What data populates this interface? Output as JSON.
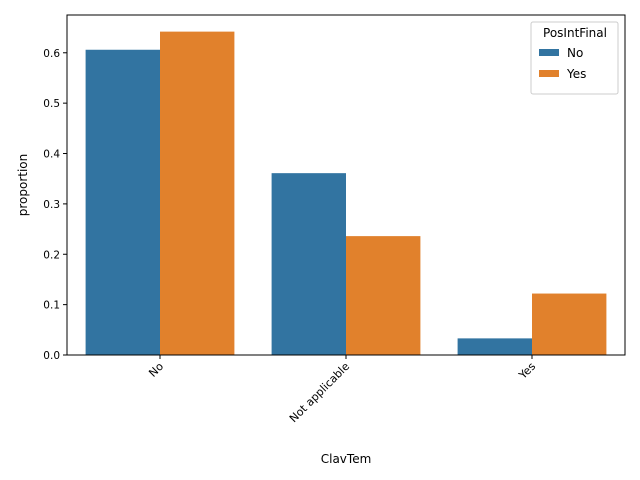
{
  "chart_data": {
    "type": "bar",
    "title": "",
    "xlabel": "ClavTem",
    "ylabel": "proportion",
    "categories": [
      "No",
      "Not applicable",
      "Yes"
    ],
    "series": [
      {
        "name": "No",
        "values": [
          0.606,
          0.361,
          0.033
        ],
        "color": "#3274a1"
      },
      {
        "name": "Yes",
        "values": [
          0.642,
          0.236,
          0.122
        ],
        "color": "#e1812c"
      }
    ],
    "ylim": [
      0,
      0.675
    ],
    "yticks": [
      0.0,
      0.1,
      0.2,
      0.3,
      0.4,
      0.5,
      0.6
    ],
    "ytick_labels": [
      "0.0",
      "0.1",
      "0.2",
      "0.3",
      "0.4",
      "0.5",
      "0.6"
    ],
    "xtick_rotation_deg": 45,
    "grid": false,
    "legend": {
      "title": "PosIntFinal",
      "position": "top-right",
      "entries": [
        "No",
        "Yes"
      ]
    }
  }
}
